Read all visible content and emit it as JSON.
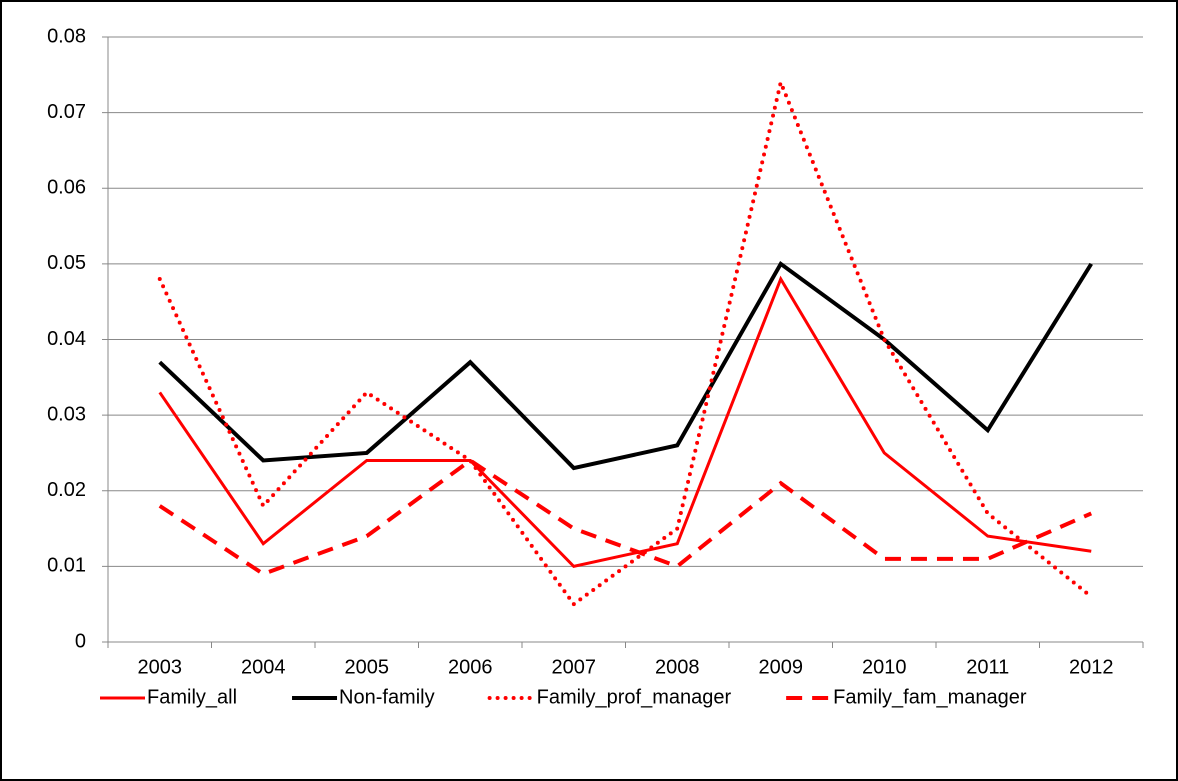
{
  "chart_data": {
    "type": "line",
    "categories": [
      "2003",
      "2004",
      "2005",
      "2006",
      "2007",
      "2008",
      "2009",
      "2010",
      "2011",
      "2012"
    ],
    "series": [
      {
        "name": "Family_all",
        "color": "#ff0000",
        "style": "solid",
        "width": 3,
        "values": [
          0.033,
          0.013,
          0.024,
          0.024,
          0.01,
          0.013,
          0.048,
          0.025,
          0.014,
          0.012
        ]
      },
      {
        "name": "Non-family",
        "color": "#000000",
        "style": "solid",
        "width": 4,
        "values": [
          0.037,
          0.024,
          0.025,
          0.037,
          0.023,
          0.026,
          0.05,
          0.04,
          0.028,
          0.05
        ]
      },
      {
        "name": "Family_prof_manager",
        "color": "#ff0000",
        "style": "dotted",
        "width": 4,
        "values": [
          0.048,
          0.018,
          0.033,
          0.024,
          0.005,
          0.015,
          0.074,
          0.04,
          0.017,
          0.006
        ]
      },
      {
        "name": "Family_fam_manager",
        "color": "#ff0000",
        "style": "dashed",
        "width": 4,
        "values": [
          0.018,
          0.009,
          0.014,
          0.024,
          0.015,
          0.01,
          0.021,
          0.011,
          0.011,
          0.017
        ]
      }
    ],
    "ylim": [
      0,
      0.08
    ],
    "yticks": [
      0,
      0.01,
      0.02,
      0.03,
      0.04,
      0.05,
      0.06,
      0.07,
      0.08
    ],
    "grid": true,
    "legend": "bottom"
  }
}
